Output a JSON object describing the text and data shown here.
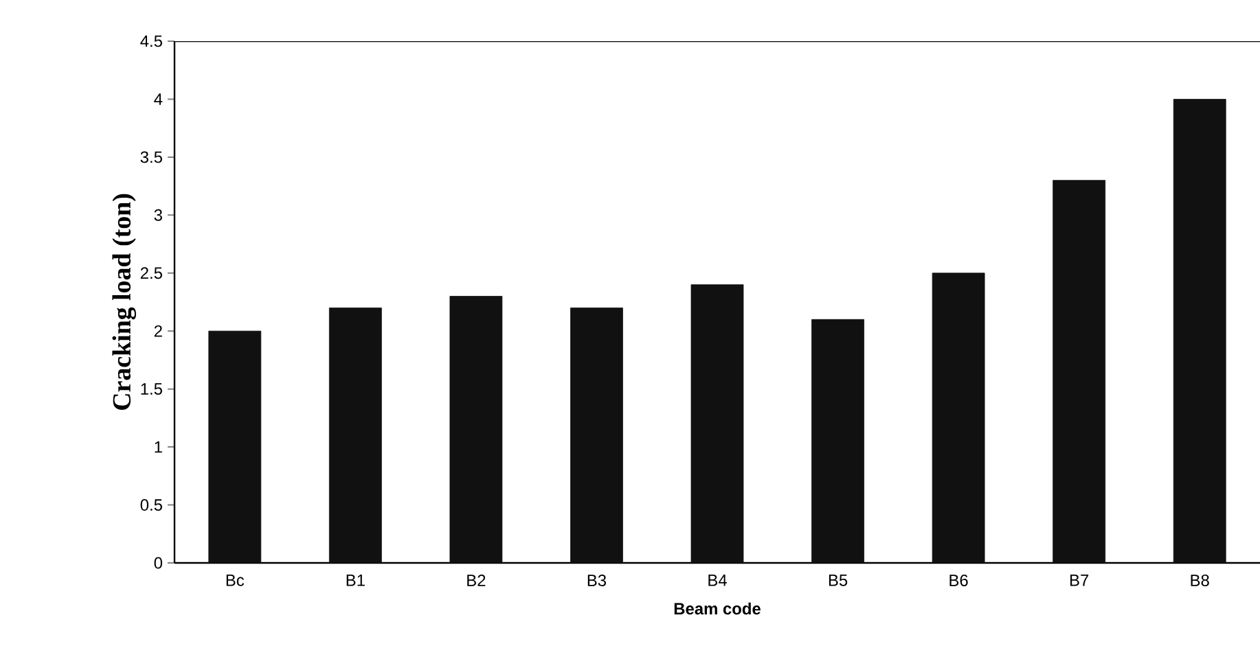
{
  "chart_data": {
    "type": "bar",
    "xlabel": "Beam code",
    "ylabel": "Cracking load (ton)",
    "categories": [
      "Bc",
      "B1",
      "B2",
      "B3",
      "B4",
      "B5",
      "B6",
      "B7",
      "B8"
    ],
    "values": [
      2.0,
      2.2,
      2.3,
      2.2,
      2.4,
      2.1,
      2.5,
      3.3,
      4.0
    ],
    "color": "#111111",
    "ylim": [
      0,
      4.5
    ],
    "yticks": [
      0,
      0.5,
      1,
      1.5,
      2,
      2.5,
      3,
      3.5,
      4,
      4.5
    ],
    "grid": false
  }
}
